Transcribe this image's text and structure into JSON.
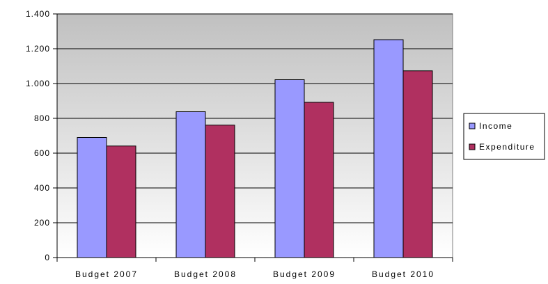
{
  "chart_data": {
    "type": "bar",
    "categories": [
      "Budget 2007",
      "Budget 2008",
      "Budget 2009",
      "Budget 2010"
    ],
    "series": [
      {
        "name": "Income",
        "color": "#9999ff",
        "values": [
          690,
          838,
          1022,
          1252
        ]
      },
      {
        "name": "Expenditure",
        "color": "#b03060",
        "values": [
          641,
          761,
          892,
          1073
        ]
      }
    ],
    "ylim": [
      0,
      1400
    ],
    "yticks": [
      0,
      200,
      400,
      600,
      800,
      1000,
      1200,
      1400
    ],
    "ytick_labels": [
      "0",
      "200",
      "400",
      "600",
      "800",
      "1.000",
      "1.200",
      "1.400"
    ],
    "grid": true,
    "legend_position": "right",
    "plot_background": "gradient gray to white"
  }
}
